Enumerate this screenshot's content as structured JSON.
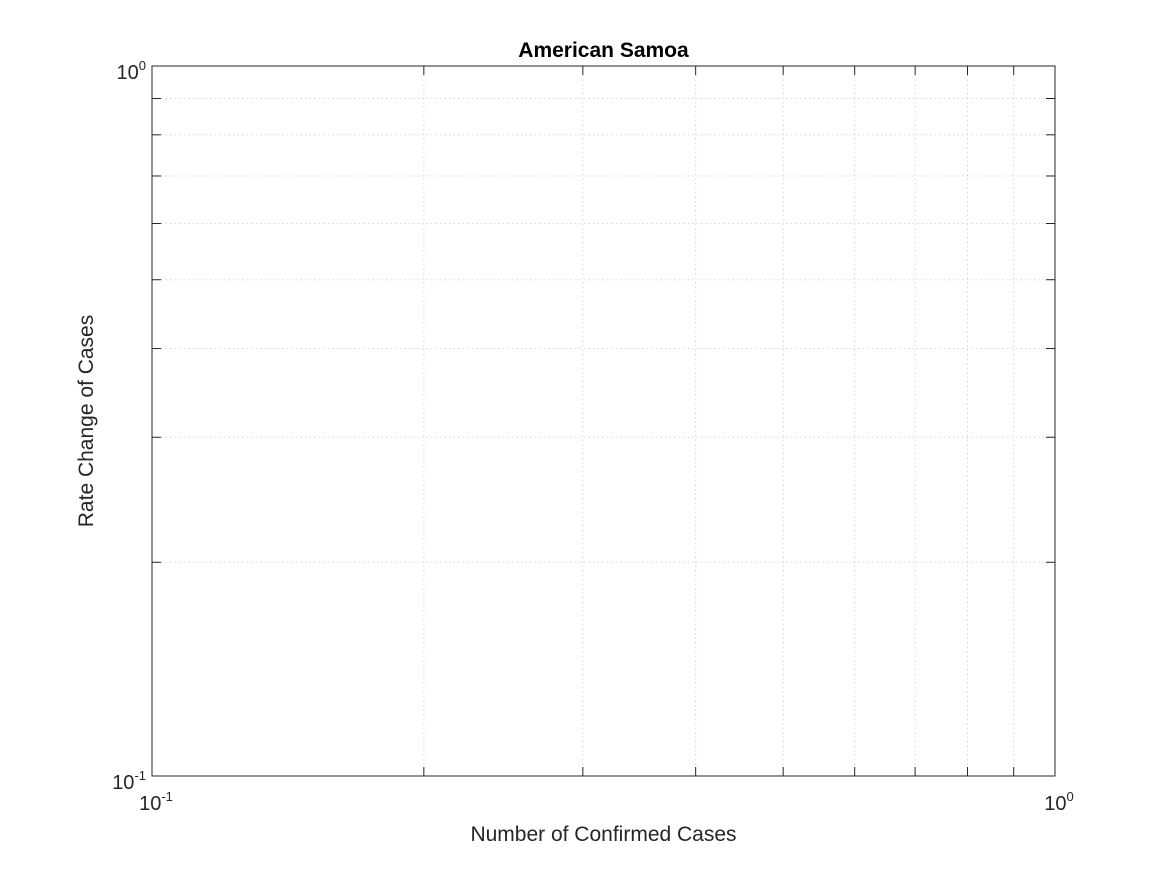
{
  "chart_data": {
    "type": "scatter",
    "title": "American Samoa",
    "xlabel": "Number of Confirmed Cases",
    "ylabel": "Rate Change of Cases",
    "x_scale": "log",
    "y_scale": "log",
    "xlim": [
      0.1,
      1
    ],
    "ylim": [
      0.1,
      1
    ],
    "x_ticks": [
      {
        "base": "10",
        "exp": "-1",
        "value": 0.1
      },
      {
        "base": "10",
        "exp": "0",
        "value": 1
      }
    ],
    "y_ticks": [
      {
        "base": "10",
        "exp": "-1",
        "value": 0.1
      },
      {
        "base": "10",
        "exp": "0",
        "value": 1
      }
    ],
    "grid": true,
    "minor_grid": true,
    "series": [
      {
        "x": [],
        "y": []
      }
    ]
  }
}
